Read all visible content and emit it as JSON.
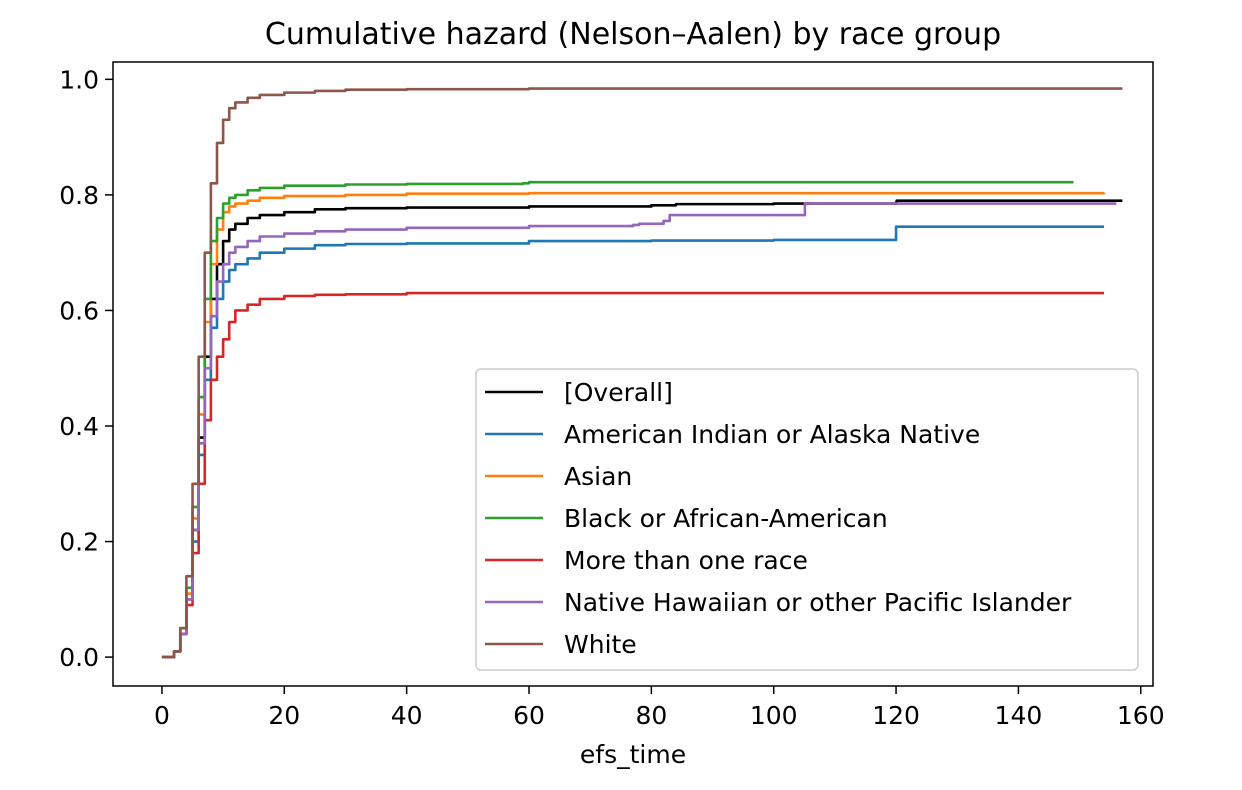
{
  "chart_data": {
    "type": "line",
    "title": "Cumulative hazard (Nelson–Aalen) by race group",
    "xlabel": "efs_time",
    "ylabel": "",
    "xlim": [
      -8,
      162
    ],
    "ylim": [
      -0.05,
      1.03
    ],
    "x_ticks": [
      0,
      20,
      40,
      60,
      80,
      100,
      120,
      140,
      160
    ],
    "x_tick_labels": [
      "0",
      "20",
      "40",
      "60",
      "80",
      "100",
      "120",
      "140",
      "160"
    ],
    "y_ticks": [
      0.0,
      0.2,
      0.4,
      0.6,
      0.8,
      1.0
    ],
    "y_tick_labels": [
      "0.0",
      "0.2",
      "0.4",
      "0.6",
      "0.8",
      "1.0"
    ],
    "grid": false,
    "legend_position": "lower-right",
    "series": [
      {
        "name": "[Overall]",
        "color": "#000000",
        "points": [
          [
            0,
            0
          ],
          [
            1,
            0.0
          ],
          [
            2,
            0.01
          ],
          [
            3,
            0.04
          ],
          [
            4,
            0.1
          ],
          [
            5,
            0.22
          ],
          [
            6,
            0.38
          ],
          [
            7,
            0.52
          ],
          [
            8,
            0.62
          ],
          [
            9,
            0.68
          ],
          [
            10,
            0.72
          ],
          [
            11,
            0.74
          ],
          [
            12,
            0.75
          ],
          [
            14,
            0.76
          ],
          [
            16,
            0.765
          ],
          [
            20,
            0.77
          ],
          [
            25,
            0.775
          ],
          [
            30,
            0.777
          ],
          [
            40,
            0.778
          ],
          [
            60,
            0.78
          ],
          [
            80,
            0.782
          ],
          [
            84,
            0.784
          ],
          [
            100,
            0.785
          ],
          [
            120,
            0.787
          ],
          [
            120.1,
            0.79
          ],
          [
            157,
            0.79
          ]
        ]
      },
      {
        "name": "American Indian or Alaska Native",
        "color": "#1f77b4",
        "points": [
          [
            0,
            0
          ],
          [
            1,
            0.0
          ],
          [
            2,
            0.01
          ],
          [
            3,
            0.04
          ],
          [
            4,
            0.1
          ],
          [
            5,
            0.2
          ],
          [
            6,
            0.35
          ],
          [
            7,
            0.48
          ],
          [
            8,
            0.57
          ],
          [
            9,
            0.62
          ],
          [
            10,
            0.65
          ],
          [
            11,
            0.67
          ],
          [
            12,
            0.68
          ],
          [
            14,
            0.69
          ],
          [
            16,
            0.7
          ],
          [
            20,
            0.707
          ],
          [
            25,
            0.713
          ],
          [
            30,
            0.715
          ],
          [
            40,
            0.716
          ],
          [
            60,
            0.72
          ],
          [
            80,
            0.721
          ],
          [
            100,
            0.722
          ],
          [
            119.9,
            0.722
          ],
          [
            120,
            0.745
          ],
          [
            154,
            0.745
          ]
        ]
      },
      {
        "name": "Asian",
        "color": "#ff7f0e",
        "points": [
          [
            0,
            0
          ],
          [
            1,
            0.0
          ],
          [
            2,
            0.01
          ],
          [
            3,
            0.04
          ],
          [
            4,
            0.11
          ],
          [
            5,
            0.24
          ],
          [
            6,
            0.42
          ],
          [
            7,
            0.58
          ],
          [
            8,
            0.68
          ],
          [
            9,
            0.74
          ],
          [
            10,
            0.77
          ],
          [
            11,
            0.78
          ],
          [
            12,
            0.785
          ],
          [
            14,
            0.79
          ],
          [
            16,
            0.795
          ],
          [
            20,
            0.798
          ],
          [
            30,
            0.8
          ],
          [
            40,
            0.802
          ],
          [
            60,
            0.803
          ],
          [
            100,
            0.803
          ],
          [
            154,
            0.804
          ]
        ]
      },
      {
        "name": "Black or African-American",
        "color": "#2ca02c",
        "points": [
          [
            0,
            0
          ],
          [
            1,
            0.0
          ],
          [
            2,
            0.01
          ],
          [
            3,
            0.05
          ],
          [
            4,
            0.12
          ],
          [
            5,
            0.26
          ],
          [
            6,
            0.45
          ],
          [
            7,
            0.62
          ],
          [
            8,
            0.72
          ],
          [
            9,
            0.76
          ],
          [
            10,
            0.785
          ],
          [
            11,
            0.795
          ],
          [
            12,
            0.8
          ],
          [
            14,
            0.808
          ],
          [
            16,
            0.812
          ],
          [
            20,
            0.816
          ],
          [
            30,
            0.818
          ],
          [
            40,
            0.819
          ],
          [
            59,
            0.82
          ],
          [
            60,
            0.822
          ],
          [
            149,
            0.822
          ]
        ]
      },
      {
        "name": "More than one race",
        "color": "#d62728",
        "points": [
          [
            0,
            0
          ],
          [
            1,
            0.0
          ],
          [
            2,
            0.01
          ],
          [
            3,
            0.04
          ],
          [
            4,
            0.09
          ],
          [
            5,
            0.18
          ],
          [
            6,
            0.3
          ],
          [
            7,
            0.41
          ],
          [
            8,
            0.48
          ],
          [
            9,
            0.52
          ],
          [
            10,
            0.55
          ],
          [
            11,
            0.58
          ],
          [
            12,
            0.6
          ],
          [
            14,
            0.61
          ],
          [
            16,
            0.62
          ],
          [
            20,
            0.625
          ],
          [
            25,
            0.627
          ],
          [
            30,
            0.628
          ],
          [
            40,
            0.63
          ],
          [
            60,
            0.63
          ],
          [
            100,
            0.63
          ],
          [
            154,
            0.63
          ]
        ]
      },
      {
        "name": "Native Hawaiian or other Pacific Islander",
        "color": "#9467bd",
        "points": [
          [
            0,
            0
          ],
          [
            1,
            0.0
          ],
          [
            2,
            0.01
          ],
          [
            3,
            0.04
          ],
          [
            4,
            0.1
          ],
          [
            5,
            0.22
          ],
          [
            6,
            0.37
          ],
          [
            7,
            0.5
          ],
          [
            8,
            0.59
          ],
          [
            9,
            0.65
          ],
          [
            10,
            0.68
          ],
          [
            11,
            0.7
          ],
          [
            12,
            0.71
          ],
          [
            14,
            0.72
          ],
          [
            16,
            0.728
          ],
          [
            20,
            0.733
          ],
          [
            25,
            0.737
          ],
          [
            30,
            0.74
          ],
          [
            40,
            0.743
          ],
          [
            60,
            0.746
          ],
          [
            77,
            0.748
          ],
          [
            78,
            0.75
          ],
          [
            82,
            0.755
          ],
          [
            83,
            0.765
          ],
          [
            105,
            0.765
          ],
          [
            105.1,
            0.785
          ],
          [
            156,
            0.785
          ]
        ]
      },
      {
        "name": "White",
        "color": "#8c564b",
        "points": [
          [
            0,
            0
          ],
          [
            1,
            0.0
          ],
          [
            2,
            0.01
          ],
          [
            3,
            0.05
          ],
          [
            4,
            0.14
          ],
          [
            5,
            0.3
          ],
          [
            6,
            0.52
          ],
          [
            7,
            0.7
          ],
          [
            8,
            0.82
          ],
          [
            9,
            0.89
          ],
          [
            10,
            0.93
          ],
          [
            11,
            0.95
          ],
          [
            12,
            0.96
          ],
          [
            14,
            0.968
          ],
          [
            16,
            0.973
          ],
          [
            20,
            0.977
          ],
          [
            25,
            0.98
          ],
          [
            30,
            0.982
          ],
          [
            40,
            0.983
          ],
          [
            60,
            0.984
          ],
          [
            100,
            0.984
          ],
          [
            157,
            0.984
          ]
        ]
      }
    ]
  }
}
